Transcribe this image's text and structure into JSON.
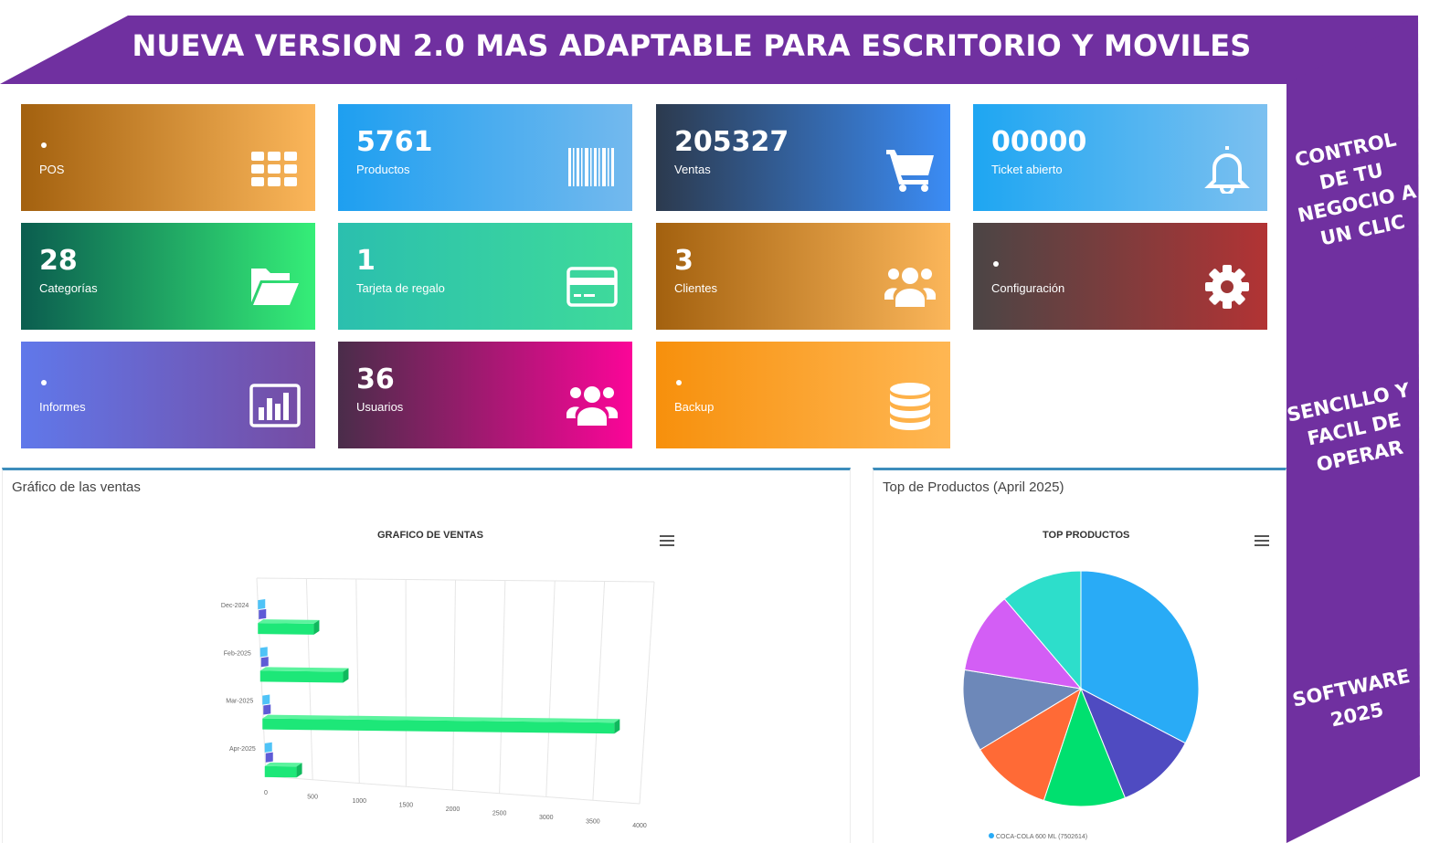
{
  "banner": {
    "title": "NUEVA VERSION 2.0 MAS ADAPTABLE PARA ESCRITORIO Y MOVILES",
    "side_texts": [
      "CONTROL\nDE TU\nNEGOCIO A\nUN CLIC",
      "SENCILLO Y\nFACIL DE\nOPERAR",
      "SOFTWARE\n2025"
    ],
    "color": "#7030a0"
  },
  "tiles": [
    {
      "value": "",
      "label": "POS",
      "icon": "grid-icon"
    },
    {
      "value": "5761",
      "label": "Productos",
      "icon": "barcode-icon"
    },
    {
      "value": "205327",
      "label": "Ventas",
      "icon": "cart-icon"
    },
    {
      "value": "00000",
      "label": "Ticket abierto",
      "icon": "bell-icon"
    },
    {
      "value": "28",
      "label": "Categorías",
      "icon": "folder-open-icon"
    },
    {
      "value": "1",
      "label": "Tarjeta de regalo",
      "icon": "credit-card-icon"
    },
    {
      "value": "3",
      "label": "Clientes",
      "icon": "users-icon"
    },
    {
      "value": "",
      "label": "Configuración",
      "icon": "gear-icon"
    },
    {
      "value": "",
      "label": "Informes",
      "icon": "bar-chart-icon"
    },
    {
      "value": "36",
      "label": "Usuarios",
      "icon": "users-icon"
    },
    {
      "value": "",
      "label": "Backup",
      "icon": "database-icon"
    }
  ],
  "sales_panel": {
    "title": "Gráfico de las ventas"
  },
  "top_panel": {
    "title": "Top de Productos (April 2025)"
  },
  "chart_data": [
    {
      "type": "bar",
      "title": "GRAFICO DE VENTAS",
      "orientation": "horizontal",
      "categories": [
        "Dec-2024",
        "Feb-2025",
        "Mar-2025",
        "Apr-2025"
      ],
      "values": [
        580,
        860,
        3650,
        330
      ],
      "xlim": [
        0,
        4000
      ],
      "xticks": [
        0,
        500,
        1000,
        1500,
        2000,
        2500,
        3000,
        3500,
        4000
      ],
      "grid": true,
      "color": "#00e676"
    },
    {
      "type": "pie",
      "title": "TOP PRODUCTOS",
      "values": [
        32,
        11,
        11,
        11,
        11,
        11,
        11
      ],
      "colors": [
        "#29abf6",
        "#4f4bc1",
        "#00e06f",
        "#ff6a36",
        "#6d88b9",
        "#d35ef5",
        "#2ddecb"
      ],
      "legend_first": "COCA-COLA 600 ML (7502614)"
    }
  ]
}
